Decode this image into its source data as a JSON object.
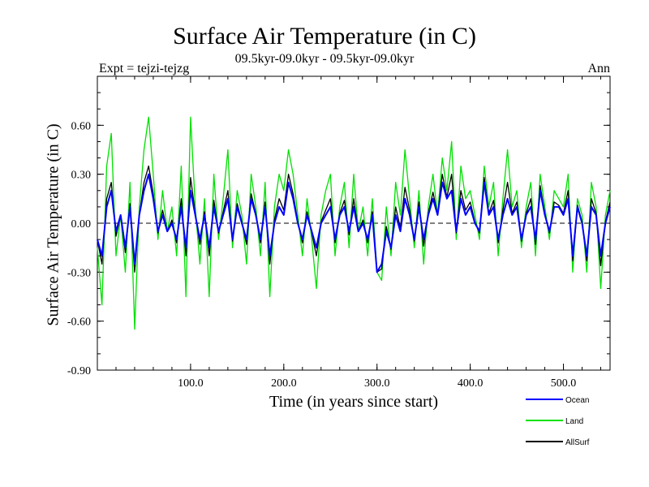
{
  "chart_data": {
    "type": "line",
    "title": "Surface Air Temperature (in C)",
    "subtitle": "09.5kyr-09.0kyr - 09.5kyr-09.0kyr",
    "left_label": "Expt = tejzi-tejzg",
    "right_label": "Ann",
    "xlabel": "Time (in years since start)",
    "ylabel": "Surface Air Temperature (in C)",
    "xlim": [
      0,
      550
    ],
    "ylim": [
      -0.9,
      0.9
    ],
    "xticks": [
      100,
      200,
      300,
      400,
      500
    ],
    "xtick_labels": [
      "100.0",
      "200.0",
      "300.0",
      "400.0",
      "500.0"
    ],
    "yticks": [
      -0.9,
      -0.6,
      -0.3,
      0.0,
      0.3,
      0.6
    ],
    "ytick_labels": [
      "-0.90",
      "-0.60",
      "-0.30",
      "0.00",
      "0.30",
      "0.60"
    ],
    "zero_line": true,
    "series": [
      {
        "name": "Land",
        "color": "#00e000",
        "x": [
          0,
          5,
          10,
          15,
          20,
          25,
          30,
          35,
          40,
          45,
          50,
          55,
          60,
          65,
          70,
          75,
          80,
          85,
          90,
          95,
          100,
          105,
          110,
          115,
          120,
          125,
          130,
          135,
          140,
          145,
          150,
          155,
          160,
          165,
          170,
          175,
          180,
          185,
          190,
          195,
          200,
          205,
          210,
          215,
          220,
          225,
          230,
          235,
          240,
          245,
          250,
          255,
          260,
          265,
          270,
          275,
          280,
          285,
          290,
          295,
          300,
          305,
          310,
          315,
          320,
          325,
          330,
          335,
          340,
          345,
          350,
          355,
          360,
          365,
          370,
          375,
          380,
          385,
          390,
          395,
          400,
          405,
          410,
          415,
          420,
          425,
          430,
          435,
          440,
          445,
          450,
          455,
          460,
          465,
          470,
          475,
          480,
          485,
          490,
          495,
          500,
          505,
          510,
          515,
          520,
          525,
          530,
          535,
          540,
          545,
          550
        ],
        "values": [
          -0.15,
          -0.5,
          0.35,
          0.55,
          -0.2,
          0.05,
          -0.3,
          0.25,
          -0.65,
          0.1,
          0.45,
          0.65,
          0.3,
          -0.1,
          0.2,
          -0.05,
          0.1,
          -0.2,
          0.35,
          -0.45,
          0.65,
          0.1,
          -0.25,
          0.15,
          -0.45,
          0.3,
          -0.1,
          0.15,
          0.45,
          -0.15,
          0.2,
          0.05,
          -0.25,
          0.3,
          0.1,
          -0.2,
          0.25,
          -0.45,
          0.1,
          0.3,
          0.2,
          0.45,
          0.3,
          0.05,
          -0.2,
          0.15,
          -0.1,
          -0.4,
          0.05,
          0.2,
          0.3,
          -0.2,
          0.1,
          0.25,
          -0.15,
          0.3,
          -0.05,
          0.1,
          -0.2,
          0.15,
          -0.3,
          -0.35,
          0.1,
          -0.2,
          0.25,
          0.05,
          0.45,
          0.15,
          -0.15,
          0.2,
          -0.25,
          0.1,
          0.3,
          0.05,
          0.4,
          0.2,
          0.5,
          -0.1,
          0.35,
          0.15,
          0.2,
          0.05,
          -0.1,
          0.35,
          0.1,
          0.25,
          -0.2,
          0.15,
          0.45,
          0.1,
          0.2,
          -0.15,
          0.1,
          0.25,
          -0.2,
          0.3,
          0.1,
          -0.1,
          0.2,
          0.15,
          0.1,
          0.3,
          -0.3,
          0.15,
          0.05,
          -0.3,
          0.25,
          0.1,
          -0.4,
          0.05,
          0.2
        ]
      },
      {
        "name": "Ocean",
        "color": "#0000ff",
        "x": [
          0,
          5,
          10,
          15,
          20,
          25,
          30,
          35,
          40,
          45,
          50,
          55,
          60,
          65,
          70,
          75,
          80,
          85,
          90,
          95,
          100,
          105,
          110,
          115,
          120,
          125,
          130,
          135,
          140,
          145,
          150,
          155,
          160,
          165,
          170,
          175,
          180,
          185,
          190,
          195,
          200,
          205,
          210,
          215,
          220,
          225,
          230,
          235,
          240,
          245,
          250,
          255,
          260,
          265,
          270,
          275,
          280,
          285,
          290,
          295,
          300,
          305,
          310,
          315,
          320,
          325,
          330,
          335,
          340,
          345,
          350,
          355,
          360,
          365,
          370,
          375,
          380,
          385,
          390,
          395,
          400,
          405,
          410,
          415,
          420,
          425,
          430,
          435,
          440,
          445,
          450,
          455,
          460,
          465,
          470,
          475,
          480,
          485,
          490,
          495,
          500,
          505,
          510,
          515,
          520,
          525,
          530,
          535,
          540,
          545,
          550
        ],
        "values": [
          -0.1,
          -0.2,
          0.1,
          0.2,
          -0.05,
          0.05,
          -0.15,
          0.1,
          -0.25,
          0.05,
          0.2,
          0.3,
          0.15,
          -0.05,
          0.05,
          -0.05,
          0.0,
          -0.1,
          0.1,
          -0.15,
          0.2,
          0.05,
          -0.1,
          0.05,
          -0.15,
          0.1,
          -0.05,
          0.05,
          0.15,
          -0.1,
          0.1,
          0.0,
          -0.1,
          0.15,
          0.05,
          -0.1,
          0.1,
          -0.2,
          0.0,
          0.1,
          0.05,
          0.25,
          0.15,
          0.0,
          -0.1,
          0.05,
          -0.05,
          -0.15,
          0.0,
          0.05,
          0.1,
          -0.1,
          0.05,
          0.1,
          -0.05,
          0.1,
          -0.05,
          0.0,
          -0.1,
          0.05,
          -0.3,
          -0.25,
          -0.05,
          -0.15,
          0.05,
          -0.05,
          0.15,
          0.05,
          -0.1,
          0.1,
          -0.1,
          0.05,
          0.15,
          0.05,
          0.25,
          0.15,
          0.2,
          -0.05,
          0.15,
          0.05,
          0.1,
          0.0,
          -0.05,
          0.25,
          0.05,
          0.1,
          -0.1,
          0.05,
          0.15,
          0.05,
          0.1,
          -0.1,
          0.05,
          0.1,
          -0.1,
          0.2,
          0.05,
          -0.05,
          0.1,
          0.1,
          0.05,
          0.15,
          -0.2,
          0.1,
          0.0,
          -0.2,
          0.1,
          0.05,
          -0.2,
          0.0,
          0.1
        ]
      },
      {
        "name": "AllSurf",
        "color": "#000000",
        "x": [
          0,
          5,
          10,
          15,
          20,
          25,
          30,
          35,
          40,
          45,
          50,
          55,
          60,
          65,
          70,
          75,
          80,
          85,
          90,
          95,
          100,
          105,
          110,
          115,
          120,
          125,
          130,
          135,
          140,
          145,
          150,
          155,
          160,
          165,
          170,
          175,
          180,
          185,
          190,
          195,
          200,
          205,
          210,
          215,
          220,
          225,
          230,
          235,
          240,
          245,
          250,
          255,
          260,
          265,
          270,
          275,
          280,
          285,
          290,
          295,
          300,
          305,
          310,
          315,
          320,
          325,
          330,
          335,
          340,
          345,
          350,
          355,
          360,
          365,
          370,
          375,
          380,
          385,
          390,
          395,
          400,
          405,
          410,
          415,
          420,
          425,
          430,
          435,
          440,
          445,
          450,
          455,
          460,
          465,
          470,
          475,
          480,
          485,
          490,
          495,
          500,
          505,
          510,
          515,
          520,
          525,
          530,
          535,
          540,
          545,
          550
        ],
        "values": [
          -0.1,
          -0.25,
          0.15,
          0.25,
          -0.08,
          0.05,
          -0.18,
          0.12,
          -0.3,
          0.05,
          0.25,
          0.35,
          0.18,
          -0.06,
          0.08,
          -0.05,
          0.02,
          -0.12,
          0.15,
          -0.2,
          0.28,
          0.06,
          -0.13,
          0.07,
          -0.2,
          0.14,
          -0.06,
          0.07,
          0.2,
          -0.11,
          0.12,
          0.01,
          -0.13,
          0.18,
          0.06,
          -0.12,
          0.13,
          -0.25,
          0.02,
          0.15,
          0.08,
          0.3,
          0.18,
          0.01,
          -0.12,
          0.07,
          -0.06,
          -0.2,
          0.01,
          0.08,
          0.15,
          -0.12,
          0.06,
          0.14,
          -0.07,
          0.15,
          -0.05,
          0.02,
          -0.12,
          0.07,
          -0.3,
          -0.28,
          -0.02,
          -0.16,
          0.1,
          -0.03,
          0.22,
          0.08,
          -0.11,
          0.13,
          -0.14,
          0.06,
          0.19,
          0.05,
          0.3,
          0.16,
          0.3,
          -0.06,
          0.2,
          0.08,
          0.13,
          0.01,
          -0.06,
          0.28,
          0.06,
          0.14,
          -0.12,
          0.08,
          0.25,
          0.06,
          0.13,
          -0.11,
          0.06,
          0.15,
          -0.13,
          0.23,
          0.06,
          -0.06,
          0.13,
          0.11,
          0.06,
          0.2,
          -0.23,
          0.11,
          0.01,
          -0.23,
          0.15,
          0.06,
          -0.26,
          0.01,
          0.13
        ]
      }
    ],
    "legend": [
      "Ocean",
      "Land",
      "AllSurf"
    ]
  }
}
